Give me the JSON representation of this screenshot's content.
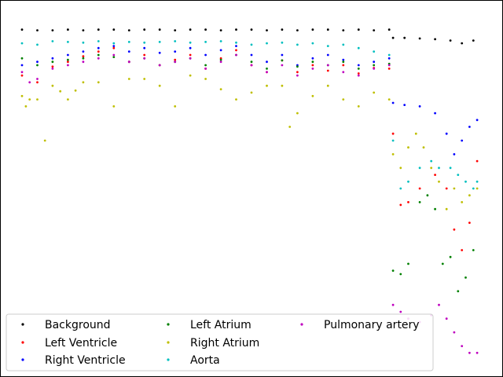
{
  "chart_data": {
    "type": "scatter",
    "title": "",
    "xlabel": "",
    "ylabel": "",
    "axes_visible": false,
    "xlim": [
      0,
      600
    ],
    "ylim": [
      0.5,
      1.0
    ],
    "legend": {
      "placement": "lower-left",
      "columns": 3
    },
    "series": [
      {
        "name": "Background",
        "color": "#000000",
        "points": [
          [
            0,
            0.982
          ],
          [
            20,
            0.981
          ],
          [
            40,
            0.981
          ],
          [
            60,
            0.982
          ],
          [
            80,
            0.981
          ],
          [
            100,
            0.982
          ],
          [
            120,
            0.982
          ],
          [
            140,
            0.981
          ],
          [
            160,
            0.982
          ],
          [
            180,
            0.982
          ],
          [
            200,
            0.981
          ],
          [
            220,
            0.982
          ],
          [
            240,
            0.982
          ],
          [
            260,
            0.981
          ],
          [
            280,
            0.982
          ],
          [
            300,
            0.982
          ],
          [
            320,
            0.981
          ],
          [
            340,
            0.982
          ],
          [
            360,
            0.981
          ],
          [
            380,
            0.982
          ],
          [
            400,
            0.982
          ],
          [
            420,
            0.981
          ],
          [
            440,
            0.982
          ],
          [
            460,
            0.981
          ],
          [
            480,
            0.982
          ],
          [
            485,
            0.97
          ],
          [
            500,
            0.97
          ],
          [
            520,
            0.969
          ],
          [
            540,
            0.968
          ],
          [
            560,
            0.966
          ],
          [
            575,
            0.962
          ],
          [
            590,
            0.966
          ]
        ]
      },
      {
        "name": "Left Ventricle",
        "color": "#ff0000",
        "points": [
          [
            0,
            0.915
          ],
          [
            20,
            0.905
          ],
          [
            40,
            0.928
          ],
          [
            60,
            0.935
          ],
          [
            80,
            0.943
          ],
          [
            100,
            0.95
          ],
          [
            120,
            0.955
          ],
          [
            140,
            0.935
          ],
          [
            160,
            0.945
          ],
          [
            180,
            0.93
          ],
          [
            200,
            0.938
          ],
          [
            220,
            0.945
          ],
          [
            240,
            0.925
          ],
          [
            260,
            0.94
          ],
          [
            280,
            0.952
          ],
          [
            300,
            0.93
          ],
          [
            320,
            0.92
          ],
          [
            340,
            0.937
          ],
          [
            360,
            0.92
          ],
          [
            380,
            0.93
          ],
          [
            400,
            0.922
          ],
          [
            420,
            0.93
          ],
          [
            440,
            0.918
          ],
          [
            460,
            0.926
          ],
          [
            480,
            0.925
          ],
          [
            485,
            0.83
          ],
          [
            495,
            0.726
          ],
          [
            505,
            0.73
          ],
          [
            520,
            0.75
          ],
          [
            540,
            0.77
          ],
          [
            555,
            0.75
          ],
          [
            565,
            0.69
          ],
          [
            575,
            0.66
          ],
          [
            585,
            0.7
          ],
          [
            595,
            0.79
          ]
        ]
      },
      {
        "name": "Right Ventricle",
        "color": "#0000ff",
        "points": [
          [
            0,
            0.93
          ],
          [
            20,
            0.935
          ],
          [
            40,
            0.94
          ],
          [
            60,
            0.945
          ],
          [
            80,
            0.95
          ],
          [
            100,
            0.955
          ],
          [
            120,
            0.958
          ],
          [
            140,
            0.95
          ],
          [
            160,
            0.955
          ],
          [
            180,
            0.948
          ],
          [
            200,
            0.95
          ],
          [
            220,
            0.955
          ],
          [
            240,
            0.945
          ],
          [
            260,
            0.952
          ],
          [
            280,
            0.958
          ],
          [
            300,
            0.945
          ],
          [
            320,
            0.935
          ],
          [
            340,
            0.945
          ],
          [
            360,
            0.93
          ],
          [
            380,
            0.94
          ],
          [
            400,
            0.945
          ],
          [
            420,
            0.938
          ],
          [
            440,
            0.93
          ],
          [
            460,
            0.935
          ],
          [
            480,
            0.94
          ],
          [
            485,
            0.875
          ],
          [
            500,
            0.872
          ],
          [
            520,
            0.87
          ],
          [
            540,
            0.86
          ],
          [
            555,
            0.83
          ],
          [
            565,
            0.8
          ],
          [
            575,
            0.82
          ],
          [
            585,
            0.84
          ],
          [
            595,
            0.85
          ]
        ]
      },
      {
        "name": "Left Atrium",
        "color": "#008000",
        "points": [
          [
            0,
            0.94
          ],
          [
            20,
            0.93
          ],
          [
            40,
            0.935
          ],
          [
            60,
            0.938
          ],
          [
            80,
            0.94
          ],
          [
            100,
            0.945
          ],
          [
            120,
            0.942
          ],
          [
            140,
            0.935
          ],
          [
            160,
            0.94
          ],
          [
            180,
            0.93
          ],
          [
            200,
            0.935
          ],
          [
            220,
            0.94
          ],
          [
            240,
            0.93
          ],
          [
            260,
            0.938
          ],
          [
            280,
            0.945
          ],
          [
            300,
            0.935
          ],
          [
            320,
            0.925
          ],
          [
            340,
            0.937
          ],
          [
            360,
            0.928
          ],
          [
            380,
            0.935
          ],
          [
            400,
            0.93
          ],
          [
            420,
            0.935
          ],
          [
            440,
            0.925
          ],
          [
            460,
            0.93
          ],
          [
            480,
            0.932
          ],
          [
            485,
            0.63
          ],
          [
            495,
            0.625
          ],
          [
            505,
            0.64
          ],
          [
            520,
            0.73
          ],
          [
            530,
            0.74
          ],
          [
            540,
            0.72
          ],
          [
            550,
            0.64
          ],
          [
            560,
            0.65
          ],
          [
            570,
            0.6
          ],
          [
            580,
            0.62
          ],
          [
            590,
            0.66
          ]
        ]
      },
      {
        "name": "Right Atrium",
        "color": "#bfbf00",
        "points": [
          [
            0,
            0.885
          ],
          [
            5,
            0.87
          ],
          [
            10,
            0.88
          ],
          [
            20,
            0.88
          ],
          [
            30,
            0.82
          ],
          [
            40,
            0.9
          ],
          [
            50,
            0.892
          ],
          [
            60,
            0.88
          ],
          [
            70,
            0.893
          ],
          [
            80,
            0.905
          ],
          [
            100,
            0.905
          ],
          [
            120,
            0.87
          ],
          [
            140,
            0.91
          ],
          [
            160,
            0.91
          ],
          [
            180,
            0.9
          ],
          [
            200,
            0.87
          ],
          [
            220,
            0.915
          ],
          [
            240,
            0.91
          ],
          [
            260,
            0.895
          ],
          [
            280,
            0.88
          ],
          [
            300,
            0.89
          ],
          [
            320,
            0.9
          ],
          [
            340,
            0.9
          ],
          [
            350,
            0.84
          ],
          [
            360,
            0.86
          ],
          [
            380,
            0.885
          ],
          [
            400,
            0.9
          ],
          [
            420,
            0.88
          ],
          [
            440,
            0.87
          ],
          [
            460,
            0.89
          ],
          [
            480,
            0.88
          ],
          [
            485,
            0.8
          ],
          [
            495,
            0.78
          ],
          [
            505,
            0.81
          ],
          [
            515,
            0.83
          ],
          [
            525,
            0.81
          ],
          [
            535,
            0.78
          ],
          [
            545,
            0.76
          ],
          [
            555,
            0.72
          ],
          [
            565,
            0.75
          ],
          [
            575,
            0.73
          ],
          [
            585,
            0.74
          ],
          [
            595,
            0.75
          ]
        ]
      },
      {
        "name": "Aorta",
        "color": "#00bfbf",
        "points": [
          [
            0,
            0.962
          ],
          [
            20,
            0.96
          ],
          [
            40,
            0.965
          ],
          [
            60,
            0.964
          ],
          [
            80,
            0.963
          ],
          [
            100,
            0.965
          ],
          [
            120,
            0.962
          ],
          [
            140,
            0.964
          ],
          [
            160,
            0.963
          ],
          [
            180,
            0.964
          ],
          [
            200,
            0.965
          ],
          [
            220,
            0.963
          ],
          [
            240,
            0.964
          ],
          [
            260,
            0.965
          ],
          [
            280,
            0.963
          ],
          [
            300,
            0.96
          ],
          [
            320,
            0.962
          ],
          [
            340,
            0.963
          ],
          [
            360,
            0.96
          ],
          [
            380,
            0.962
          ],
          [
            400,
            0.958
          ],
          [
            420,
            0.96
          ],
          [
            440,
            0.955
          ],
          [
            460,
            0.95
          ],
          [
            480,
            0.945
          ],
          [
            485,
            0.82
          ],
          [
            495,
            0.75
          ],
          [
            505,
            0.76
          ],
          [
            520,
            0.78
          ],
          [
            535,
            0.79
          ],
          [
            545,
            0.78
          ],
          [
            560,
            0.78
          ],
          [
            570,
            0.77
          ],
          [
            580,
            0.76
          ],
          [
            590,
            0.75
          ],
          [
            595,
            0.76
          ]
        ]
      },
      {
        "name": "Pulmonary artery",
        "color": "#bf00bf",
        "points": [
          [
            0,
            0.92
          ],
          [
            10,
            0.905
          ],
          [
            20,
            0.91
          ],
          [
            40,
            0.925
          ],
          [
            60,
            0.93
          ],
          [
            80,
            0.935
          ],
          [
            100,
            0.94
          ],
          [
            120,
            0.945
          ],
          [
            140,
            0.935
          ],
          [
            160,
            0.94
          ],
          [
            180,
            0.93
          ],
          [
            200,
            0.935
          ],
          [
            220,
            0.94
          ],
          [
            240,
            0.925
          ],
          [
            260,
            0.935
          ],
          [
            280,
            0.945
          ],
          [
            300,
            0.93
          ],
          [
            320,
            0.92
          ],
          [
            340,
            0.93
          ],
          [
            360,
            0.915
          ],
          [
            380,
            0.925
          ],
          [
            400,
            0.93
          ],
          [
            420,
            0.92
          ],
          [
            440,
            0.915
          ],
          [
            460,
            0.925
          ],
          [
            480,
            0.93
          ],
          [
            485,
            0.58
          ],
          [
            495,
            0.57
          ],
          [
            505,
            0.56
          ],
          [
            520,
            0.555
          ],
          [
            535,
            0.565
          ],
          [
            545,
            0.58
          ],
          [
            555,
            0.56
          ],
          [
            565,
            0.54
          ],
          [
            575,
            0.52
          ],
          [
            585,
            0.51
          ],
          [
            595,
            0.51
          ]
        ]
      }
    ]
  }
}
